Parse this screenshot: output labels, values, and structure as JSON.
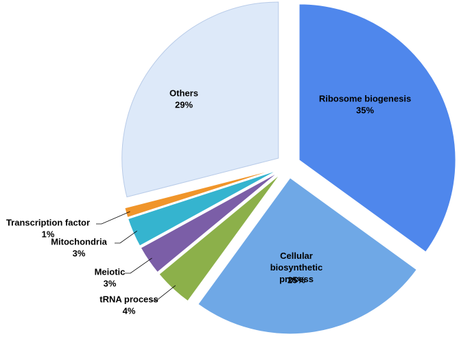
{
  "chart_data": {
    "type": "pie",
    "categories": [
      "Ribosome biogenesis",
      "Cellular biosynthetic process",
      "tRNA process",
      "Meiotic",
      "Mitochondria",
      "Transcription factor",
      "Others"
    ],
    "values": [
      35,
      25,
      4,
      3,
      3,
      1,
      29
    ],
    "value_labels": [
      "35%",
      "25%",
      "4%",
      "3%",
      "3%",
      "1%",
      "29%"
    ],
    "colors": [
      "#4f87ec",
      "#6fa8e6",
      "#8cb04a",
      "#7b5ea7",
      "#35b4cf",
      "#f0952a",
      "#dde9f9"
    ]
  }
}
